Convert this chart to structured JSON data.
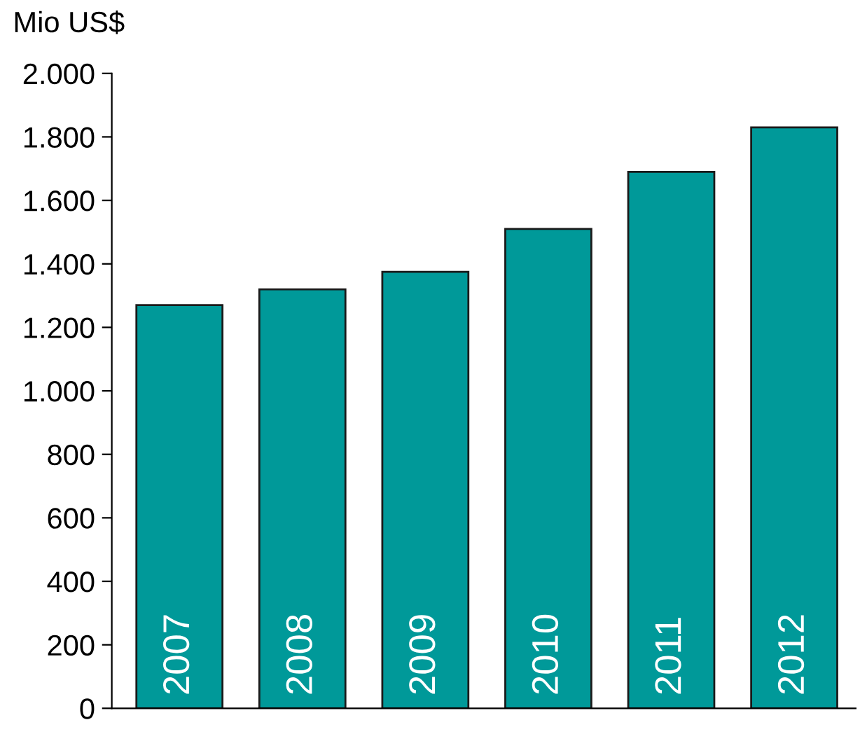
{
  "chart_data": {
    "type": "bar",
    "ylabel": "Mio US$",
    "categories": [
      "2007",
      "2008",
      "2009",
      "2010",
      "2011",
      "2012"
    ],
    "values": [
      1270,
      1320,
      1375,
      1510,
      1690,
      1830
    ],
    "color": "#009999",
    "ylim": [
      0,
      2000
    ],
    "yticks": [
      0,
      200,
      400,
      600,
      800,
      {
        "value": 1000,
        "label": "1.000"
      },
      {
        "value": 1200,
        "label": "1.200"
      },
      {
        "value": 1400,
        "label": "1.400"
      },
      {
        "value": 1600,
        "label": "1.600"
      },
      {
        "value": 1800,
        "label": "1.800"
      },
      {
        "value": 2000,
        "label": "2.000"
      }
    ],
    "grid": false,
    "legend": false
  }
}
